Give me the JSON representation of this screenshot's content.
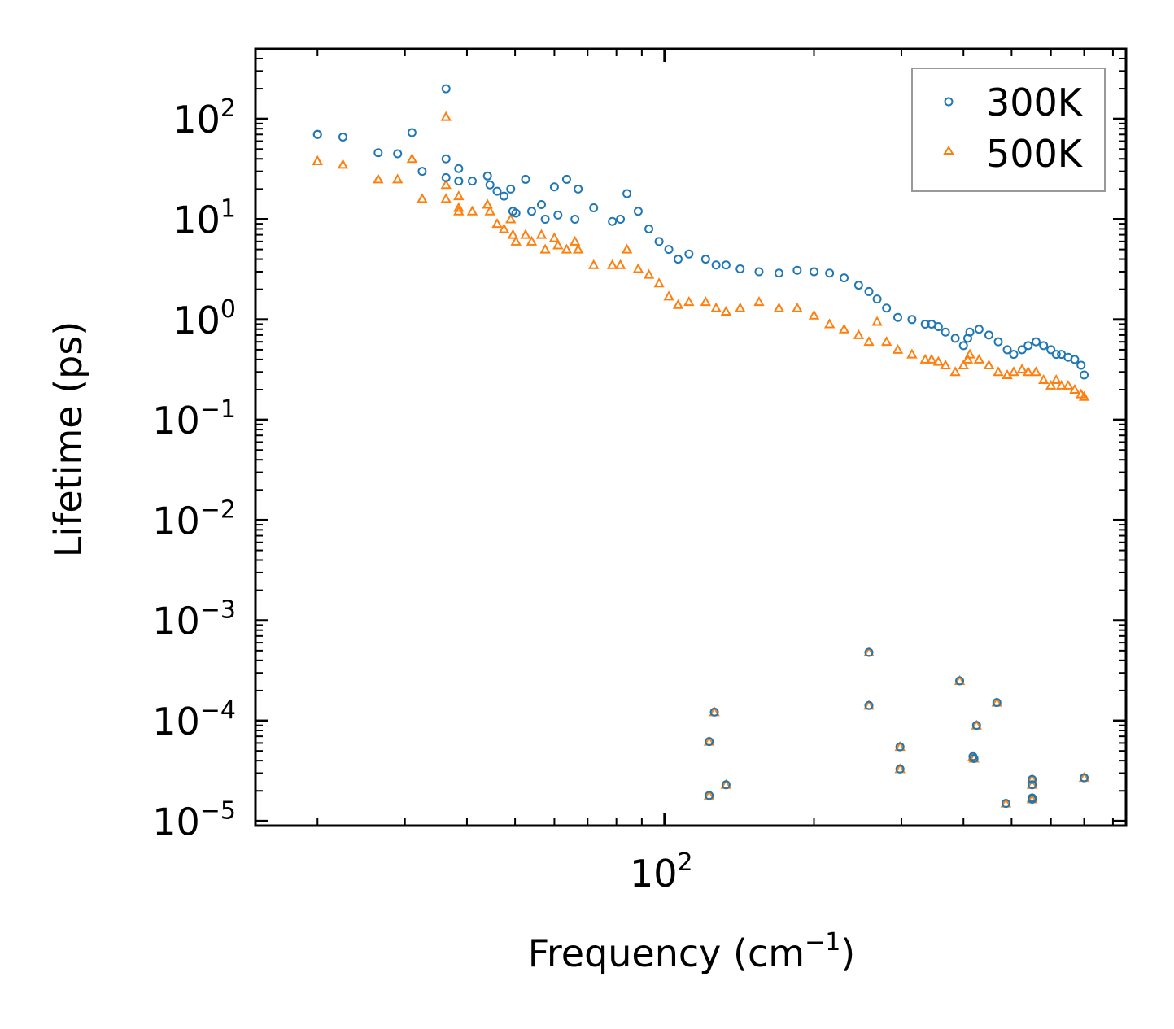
{
  "chart_data": {
    "type": "scatter",
    "title": "",
    "xlabel": "Frequency (cm",
    "xlabel_sup": "−1",
    "xlabel_close": ")",
    "ylabel": "Lifetime (ps)",
    "xscale": "log",
    "yscale": "log",
    "xlim": [
      15,
      850
    ],
    "ylim": [
      9e-06,
      500
    ],
    "x_major_ticks": [
      {
        "value": 100,
        "base": "10",
        "exp": "2"
      }
    ],
    "y_major_ticks": [
      {
        "value": 100,
        "base": "10",
        "exp": "2"
      },
      {
        "value": 10,
        "base": "10",
        "exp": "1"
      },
      {
        "value": 1,
        "base": "10",
        "exp": "0"
      },
      {
        "value": 0.1,
        "base": "10",
        "exp": "−1"
      },
      {
        "value": 0.01,
        "base": "10",
        "exp": "−2"
      },
      {
        "value": 0.001,
        "base": "10",
        "exp": "−3"
      },
      {
        "value": 0.0001,
        "base": "10",
        "exp": "−4"
      },
      {
        "value": 1e-05,
        "base": "10",
        "exp": "−5"
      }
    ],
    "legend": {
      "placement": "top-right",
      "entries": [
        "300K",
        "500K"
      ]
    },
    "colors": {
      "300K": "#1f77b4",
      "500K": "#ff7f0e"
    },
    "series": [
      {
        "name": "300K",
        "marker": "circle",
        "x": [
          20,
          20,
          22.5,
          26.5,
          29,
          31,
          32.5,
          36.3,
          36.3,
          36.3,
          38.5,
          38.5,
          38.5,
          41,
          44,
          44.5,
          46,
          47.5,
          49,
          49.5,
          50.2,
          52.5,
          54,
          56.5,
          57.5,
          60,
          61,
          63.5,
          66,
          67,
          72,
          78.5,
          81.5,
          84,
          88.5,
          93,
          97.5,
          102,
          106.5,
          112,
          121,
          127,
          133,
          142,
          155,
          170,
          185,
          200,
          215,
          230,
          246,
          258,
          268,
          280,
          295,
          315,
          335,
          345,
          356,
          368,
          385,
          400,
          408,
          412,
          430,
          450,
          470,
          490,
          505,
          525,
          540,
          560,
          580,
          600,
          615,
          630,
          650,
          670,
          690,
          700,
          123,
          123,
          126,
          133,
          258,
          258,
          298,
          298,
          393,
          418,
          420,
          425,
          467,
          487,
          550,
          550,
          550,
          550,
          700
        ],
        "y": [
          70,
          70,
          66,
          46,
          45,
          73,
          30,
          200,
          40,
          26,
          32,
          24,
          24,
          24,
          27,
          22,
          19,
          17,
          20,
          12,
          11.5,
          25,
          12,
          14,
          10,
          21,
          11,
          25,
          10,
          20,
          13,
          9.5,
          10,
          18,
          12,
          8,
          6,
          5,
          4,
          4.5,
          4,
          3.5,
          3.5,
          3.2,
          3,
          2.9,
          3.1,
          3,
          2.9,
          2.6,
          2.2,
          1.9,
          1.6,
          1.3,
          1.05,
          1.0,
          0.9,
          0.9,
          0.85,
          0.75,
          0.65,
          0.55,
          0.65,
          0.75,
          0.8,
          0.7,
          0.6,
          0.5,
          0.45,
          0.5,
          0.55,
          0.6,
          0.55,
          0.5,
          0.45,
          0.45,
          0.42,
          0.4,
          0.35,
          0.28,
          1.8e-05,
          6.2e-05,
          0.000122,
          2.3e-05,
          0.00048,
          0.000142,
          5.5e-05,
          3.3e-05,
          0.00025,
          4.4e-05,
          4.2e-05,
          9e-05,
          0.000152,
          1.5e-05,
          2.6e-05,
          2.3e-05,
          1.7e-05,
          1.65e-05,
          2.7e-05
        ]
      },
      {
        "name": "500K",
        "marker": "triangle",
        "x": [
          20,
          20,
          22.5,
          26.5,
          29,
          31,
          32.5,
          36.3,
          36.3,
          36.3,
          38.5,
          38.5,
          38.5,
          41,
          44,
          44.5,
          46,
          47.5,
          49,
          49.5,
          50.2,
          52.5,
          54,
          56.5,
          57.5,
          60,
          61,
          63.5,
          66,
          67,
          72,
          78.5,
          81.5,
          84,
          88.5,
          93,
          97.5,
          102,
          106.5,
          112,
          121,
          127,
          133,
          142,
          155,
          170,
          185,
          200,
          215,
          230,
          246,
          258,
          268,
          280,
          295,
          315,
          335,
          345,
          356,
          368,
          385,
          400,
          408,
          412,
          430,
          450,
          470,
          490,
          505,
          525,
          540,
          560,
          580,
          600,
          615,
          630,
          650,
          670,
          690,
          700,
          123,
          123,
          126,
          133,
          258,
          258,
          298,
          298,
          393,
          418,
          420,
          425,
          467,
          487,
          550,
          550,
          550,
          550,
          700
        ],
        "y": [
          38,
          38,
          35,
          25,
          25,
          40,
          16,
          105,
          22,
          16,
          17,
          13,
          12,
          12,
          14,
          12,
          9,
          8,
          10,
          7,
          6,
          7,
          6,
          7,
          5,
          6.5,
          5.5,
          5,
          6,
          5,
          3.5,
          3.5,
          3.5,
          5,
          3.2,
          2.8,
          2.3,
          1.7,
          1.4,
          1.5,
          1.5,
          1.3,
          1.2,
          1.3,
          1.5,
          1.3,
          1.3,
          1.1,
          0.9,
          0.8,
          0.7,
          0.6,
          0.95,
          0.6,
          0.5,
          0.45,
          0.4,
          0.4,
          0.38,
          0.35,
          0.3,
          0.35,
          0.4,
          0.45,
          0.4,
          0.35,
          0.3,
          0.28,
          0.3,
          0.32,
          0.3,
          0.3,
          0.25,
          0.22,
          0.25,
          0.22,
          0.22,
          0.2,
          0.18,
          0.17,
          1.8e-05,
          6.2e-05,
          0.000122,
          2.3e-05,
          0.00048,
          0.000142,
          5.5e-05,
          3.3e-05,
          0.00025,
          4.4e-05,
          4.2e-05,
          9e-05,
          0.000152,
          1.5e-05,
          2.6e-05,
          2.3e-05,
          1.7e-05,
          1.65e-05,
          2.7e-05
        ]
      }
    ]
  }
}
